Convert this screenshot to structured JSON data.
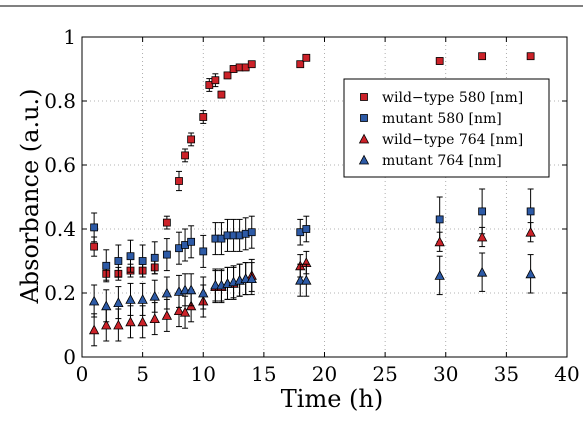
{
  "chart_data": {
    "type": "scatter",
    "title": "",
    "xlabel": "Time (h)",
    "ylabel": "Absorbance (a.u.)",
    "xlim": [
      0,
      40
    ],
    "ylim": [
      0,
      1
    ],
    "xticks": [
      0,
      5,
      10,
      15,
      20,
      25,
      30,
      35,
      40
    ],
    "yticks": [
      0,
      0.2,
      0.4,
      0.6,
      0.8,
      1
    ],
    "ytick_labels": [
      "0",
      "0.2",
      "0.4",
      "0.6",
      "0.8",
      "1"
    ],
    "grid": true,
    "legend_position": "top-right",
    "series": [
      {
        "name": "wild−type 580 [nm]",
        "marker": "square",
        "color": "#cc2229",
        "x": [
          1,
          2,
          3,
          4,
          5,
          6,
          7,
          8,
          8.5,
          9,
          10,
          10.5,
          11,
          11.5,
          12,
          12.5,
          13,
          13.5,
          14,
          18,
          18.5,
          29.5,
          33,
          37
        ],
        "y": [
          0.345,
          0.26,
          0.26,
          0.27,
          0.27,
          0.28,
          0.42,
          0.55,
          0.63,
          0.68,
          0.75,
          0.85,
          0.865,
          0.82,
          0.88,
          0.9,
          0.905,
          0.905,
          0.915,
          0.915,
          0.935,
          0.925,
          0.94,
          0.94
        ],
        "err": [
          0.03,
          0.02,
          0.02,
          0.02,
          0.02,
          0.02,
          0.02,
          0.03,
          0.02,
          0.02,
          0.02,
          0.02,
          0.02,
          0.01,
          0.01,
          0.01,
          0.01,
          0.01,
          0.01,
          0.01,
          0.01,
          0.01,
          0.01,
          0.01
        ]
      },
      {
        "name": "mutant 580 [nm]",
        "marker": "square",
        "color": "#2d5aa6",
        "x": [
          1,
          2,
          3,
          4,
          5,
          6,
          7,
          8,
          8.5,
          9,
          10,
          11,
          11.5,
          12,
          12.5,
          13,
          13.5,
          14,
          18,
          18.5,
          29.5,
          33,
          37
        ],
        "y": [
          0.405,
          0.285,
          0.3,
          0.315,
          0.3,
          0.31,
          0.32,
          0.34,
          0.35,
          0.36,
          0.33,
          0.37,
          0.37,
          0.38,
          0.38,
          0.38,
          0.385,
          0.39,
          0.39,
          0.4,
          0.43,
          0.455,
          0.455
        ],
        "err": [
          0.045,
          0.05,
          0.05,
          0.05,
          0.05,
          0.05,
          0.05,
          0.05,
          0.05,
          0.05,
          0.05,
          0.05,
          0.05,
          0.05,
          0.05,
          0.05,
          0.05,
          0.05,
          0.04,
          0.04,
          0.07,
          0.07,
          0.07
        ]
      },
      {
        "name": "wild−type 764 [nm]",
        "marker": "triangle",
        "color": "#cc2229",
        "x": [
          1,
          2,
          3,
          4,
          5,
          6,
          7,
          8,
          8.5,
          9,
          10,
          11,
          11.5,
          12,
          12.5,
          13,
          13.5,
          14,
          18,
          18.5,
          29.5,
          33,
          37
        ],
        "y": [
          0.085,
          0.1,
          0.1,
          0.11,
          0.11,
          0.12,
          0.13,
          0.145,
          0.14,
          0.16,
          0.175,
          0.22,
          0.22,
          0.23,
          0.23,
          0.24,
          0.245,
          0.255,
          0.285,
          0.295,
          0.36,
          0.375,
          0.39
        ],
        "err": [
          0.05,
          0.05,
          0.05,
          0.05,
          0.05,
          0.05,
          0.05,
          0.05,
          0.05,
          0.05,
          0.05,
          0.05,
          0.05,
          0.05,
          0.05,
          0.05,
          0.05,
          0.05,
          0.035,
          0.035,
          0.03,
          0.03,
          0.03
        ]
      },
      {
        "name": "mutant 764 [nm]",
        "marker": "triangle",
        "color": "#2d5aa6",
        "x": [
          1,
          2,
          3,
          4,
          5,
          6,
          7,
          8,
          8.5,
          9,
          10,
          11,
          11.5,
          12,
          12.5,
          13,
          13.5,
          14,
          18,
          18.5,
          29.5,
          33,
          37
        ],
        "y": [
          0.175,
          0.16,
          0.17,
          0.18,
          0.18,
          0.19,
          0.2,
          0.205,
          0.21,
          0.21,
          0.2,
          0.225,
          0.225,
          0.23,
          0.235,
          0.24,
          0.245,
          0.245,
          0.24,
          0.24,
          0.255,
          0.265,
          0.26
        ],
        "err": [
          0.05,
          0.05,
          0.05,
          0.05,
          0.05,
          0.05,
          0.05,
          0.05,
          0.05,
          0.05,
          0.05,
          0.05,
          0.05,
          0.05,
          0.05,
          0.05,
          0.05,
          0.05,
          0.05,
          0.05,
          0.06,
          0.06,
          0.06
        ]
      }
    ]
  }
}
